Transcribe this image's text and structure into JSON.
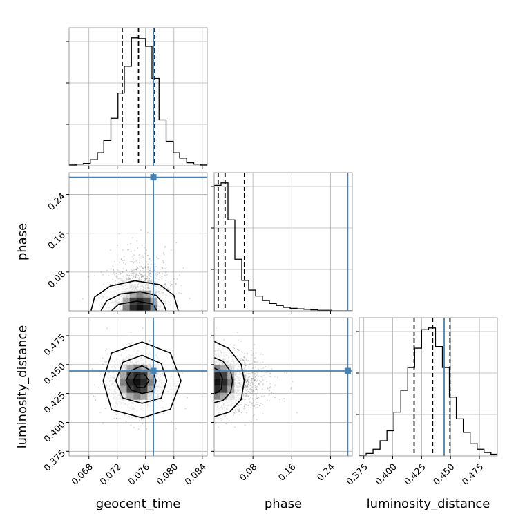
{
  "chart_data": {
    "type": "corner",
    "parameters": [
      "geocent_time",
      "phase",
      "luminosity_distance"
    ],
    "axis_labels": [
      "geocent_time",
      "phase",
      "luminosity_distance"
    ],
    "ranges": {
      "geocent_time": [
        0.0652,
        0.0847
      ],
      "phase": [
        0.0,
        0.285
      ],
      "luminosity_distance": [
        0.371,
        0.4905
      ]
    },
    "ticks": {
      "geocent_time": [
        "0.068",
        "0.072",
        "0.076",
        "0.080",
        "0.084"
      ],
      "phase": [
        "0.08",
        "0.16",
        "0.24"
      ],
      "luminosity_distance": [
        "0.375",
        "0.400",
        "0.425",
        "0.450",
        "0.475"
      ]
    },
    "truths": {
      "geocent_time": 0.0771,
      "phase": 0.2755,
      "luminosity_distance": 0.4445
    },
    "quantiles": {
      "geocent_time": [
        0.0727,
        0.075,
        0.0773
      ],
      "phase": [
        0.0083,
        0.0225,
        0.0625
      ],
      "luminosity_distance": [
        0.4185,
        0.4345,
        0.4495
      ]
    },
    "histograms": {
      "geocent_time": {
        "edges": [
          0.0652,
          0.0662,
          0.0672,
          0.0682,
          0.0692,
          0.0701,
          0.0711,
          0.0721,
          0.073,
          0.074,
          0.075,
          0.076,
          0.0769,
          0.0779,
          0.0789,
          0.0799,
          0.0808,
          0.0818,
          0.0828,
          0.0838,
          0.0847
        ],
        "counts": [
          1,
          2,
          3,
          8,
          17,
          33,
          62,
          95,
          130,
          167,
          166,
          156,
          114,
          60,
          32,
          17,
          10,
          4,
          2,
          1
        ]
      },
      "phase": {
        "edges": [
          0.0,
          0.01425,
          0.0285,
          0.04275,
          0.057,
          0.07125,
          0.0855,
          0.09975,
          0.114,
          0.12825,
          0.1425,
          0.15675,
          0.171,
          0.18525,
          0.1995,
          0.21375,
          0.228,
          0.24225,
          0.2565,
          0.27075,
          0.285
        ],
        "counts": [
          255,
          260,
          185,
          105,
          62,
          42,
          30,
          21,
          15,
          11,
          7,
          5,
          4,
          3,
          2,
          1,
          1,
          0,
          0,
          0
        ]
      },
      "luminosity_distance": {
        "edges": [
          0.371,
          0.377,
          0.383,
          0.389,
          0.395,
          0.401,
          0.407,
          0.413,
          0.419,
          0.425,
          0.431,
          0.437,
          0.443,
          0.449,
          0.455,
          0.461,
          0.467,
          0.473,
          0.479,
          0.485,
          0.4905
        ],
        "counts": [
          1,
          3,
          8,
          18,
          30,
          52,
          78,
          105,
          128,
          150,
          152,
          130,
          105,
          70,
          44,
          28,
          15,
          8,
          4,
          2
        ]
      }
    },
    "contours": {
      "geocent_time|phase": [
        [
          0.0683,
          0.0,
          0.0688,
          0.0285,
          0.071,
          0.051,
          0.0745,
          0.062,
          0.078,
          0.054,
          0.08,
          0.032,
          0.0806,
          0.0
        ],
        [
          0.0697,
          0.0,
          0.0705,
          0.0205,
          0.0725,
          0.035,
          0.0752,
          0.0395,
          0.0775,
          0.032,
          0.0785,
          0.015,
          0.0789,
          0.0
        ],
        [
          0.0712,
          0.0,
          0.0722,
          0.0135,
          0.0748,
          0.02,
          0.077,
          0.014,
          0.0776,
          0.0
        ]
      ],
      "geocent_time|luminosity_distance": [
        [
          0.07,
          0.436,
          0.0712,
          0.46,
          0.0755,
          0.4695,
          0.0795,
          0.46,
          0.081,
          0.436,
          0.0795,
          0.4115,
          0.0755,
          0.404,
          0.0712,
          0.411,
          0.07,
          0.436
        ],
        [
          0.0718,
          0.436,
          0.0728,
          0.452,
          0.0755,
          0.458,
          0.0782,
          0.451,
          0.079,
          0.436,
          0.0782,
          0.421,
          0.0755,
          0.4165,
          0.0728,
          0.421,
          0.0718,
          0.436
        ],
        [
          0.0732,
          0.436,
          0.074,
          0.445,
          0.0755,
          0.449,
          0.077,
          0.444,
          0.0775,
          0.436,
          0.077,
          0.427,
          0.0755,
          0.425,
          0.074,
          0.428,
          0.0732,
          0.436
        ],
        [
          0.0742,
          0.4355,
          0.0748,
          0.4415,
          0.0758,
          0.442,
          0.0765,
          0.436,
          0.0758,
          0.43,
          0.0748,
          0.4305,
          0.0742,
          0.4355
        ]
      ],
      "phase|luminosity_distance": [
        [
          0.0,
          0.47,
          0.03,
          0.464,
          0.056,
          0.45,
          0.062,
          0.436,
          0.056,
          0.42,
          0.032,
          0.409,
          0.0,
          0.405
        ],
        [
          0.0,
          0.456,
          0.018,
          0.453,
          0.034,
          0.444,
          0.038,
          0.436,
          0.034,
          0.426,
          0.018,
          0.419,
          0.0,
          0.417
        ],
        [
          0.0,
          0.447,
          0.01,
          0.445,
          0.017,
          0.438,
          0.015,
          0.429,
          0.008,
          0.426,
          0.0,
          0.425
        ]
      ]
    },
    "density_centers": {
      "geocent_time|phase": [
        0.0752,
        0.006
      ],
      "geocent_time|luminosity_distance": [
        0.0748,
        0.4345
      ],
      "phase|luminosity_distance": [
        0.006,
        0.4345
      ]
    },
    "styles": {
      "truth_color": "#4682b4",
      "hist_color": "#000000",
      "grid_color": "#b0b0b0",
      "quantile_style": "dashed",
      "grid": true
    }
  }
}
